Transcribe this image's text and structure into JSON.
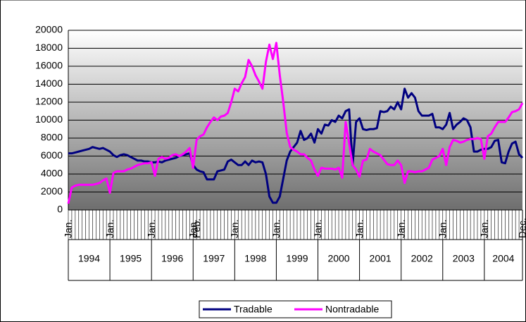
{
  "chart_data": {
    "type": "line",
    "categories": [
      "Jan.",
      null,
      null,
      null,
      null,
      null,
      null,
      null,
      null,
      null,
      null,
      null,
      "Jan.",
      null,
      null,
      null,
      null,
      null,
      null,
      null,
      null,
      null,
      null,
      null,
      "Jan.",
      null,
      null,
      null,
      null,
      null,
      null,
      null,
      null,
      null,
      null,
      null,
      "Jan.",
      "Feb.",
      null,
      null,
      null,
      null,
      null,
      null,
      null,
      null,
      null,
      null,
      "Jan.",
      null,
      null,
      null,
      null,
      null,
      null,
      null,
      null,
      null,
      null,
      null,
      "Jan.",
      null,
      null,
      null,
      null,
      null,
      null,
      null,
      null,
      null,
      null,
      null,
      "Jan.",
      null,
      null,
      null,
      null,
      null,
      null,
      null,
      null,
      null,
      null,
      null,
      "Jan.",
      null,
      null,
      null,
      null,
      null,
      null,
      null,
      null,
      null,
      null,
      null,
      "Jan.",
      null,
      null,
      null,
      null,
      null,
      null,
      null,
      null,
      null,
      null,
      null,
      "Jan.",
      null,
      null,
      null,
      null,
      null,
      null,
      null,
      null,
      null,
      null,
      null,
      "Jan.",
      null,
      null,
      null,
      null,
      null,
      null,
      null,
      null,
      null,
      null,
      "Dec."
    ],
    "years": [
      "1994",
      "1995",
      "1996",
      "1997",
      "1998",
      "1999",
      "2000",
      "2001",
      "2002",
      "2003",
      "2004"
    ],
    "series": [
      {
        "name": "Tradable",
        "color": "#000080",
        "values": [
          6300,
          6300,
          6400,
          6500,
          6600,
          6700,
          6800,
          7000,
          6900,
          6800,
          6900,
          6700,
          6500,
          6100,
          5900,
          6100,
          6200,
          6100,
          5900,
          5700,
          5500,
          5500,
          5400,
          5400,
          5300,
          5300,
          5400,
          5300,
          5500,
          5600,
          5700,
          5800,
          6000,
          6100,
          6200,
          6300,
          5000,
          4500,
          4300,
          4200,
          3400,
          3400,
          3400,
          4300,
          4400,
          4500,
          5400,
          5600,
          5300,
          5000,
          5000,
          5400,
          5000,
          5500,
          5300,
          5400,
          5300,
          4000,
          1500,
          800,
          800,
          1500,
          3500,
          5500,
          6500,
          7000,
          7500,
          8800,
          7800,
          8000,
          8500,
          7500,
          9000,
          8500,
          9500,
          9400,
          10000,
          9800,
          10500,
          10200,
          11000,
          11200,
          5000,
          9800,
          10200,
          9000,
          8900,
          9000,
          9000,
          9100,
          11000,
          10900,
          11000,
          11500,
          11200,
          12000,
          11200,
          13500,
          12500,
          13000,
          12500,
          11000,
          10500,
          10500,
          10500,
          10700,
          9200,
          9200,
          9000,
          9500,
          10800,
          9000,
          9500,
          9800,
          10200,
          10000,
          9200,
          6500,
          6500,
          6700,
          6800,
          6800,
          7000,
          7700,
          7800,
          5300,
          5200,
          6500,
          7400,
          7600,
          6200,
          5800
        ]
      },
      {
        "name": "Nontradable",
        "color": "#ff00ff",
        "values": [
          700,
          2500,
          2700,
          2800,
          2800,
          2800,
          2800,
          2800,
          2900,
          3000,
          3300,
          3500,
          1900,
          4100,
          4300,
          4300,
          4300,
          4500,
          4600,
          4800,
          5000,
          5100,
          5200,
          5200,
          5300,
          3800,
          5700,
          5900,
          5700,
          5800,
          6100,
          6200,
          6000,
          6200,
          6500,
          6900,
          4700,
          7800,
          8200,
          8400,
          9200,
          9800,
          10300,
          10000,
          10400,
          10500,
          10800,
          12000,
          13500,
          13200,
          14100,
          14800,
          16700,
          16000,
          15000,
          14300,
          13500,
          16500,
          18400,
          16800,
          18600,
          15000,
          12000,
          8600,
          7000,
          6700,
          6500,
          6200,
          6200,
          5800,
          5500,
          4500,
          3800,
          4700,
          4600,
          4600,
          4600,
          4500,
          4700,
          3600,
          9800,
          7400,
          5000,
          4500,
          3700,
          5500,
          5600,
          6800,
          6500,
          6300,
          6100,
          5600,
          5100,
          5000,
          5000,
          5500,
          5000,
          3000,
          4300,
          4300,
          4200,
          4300,
          4300,
          4500,
          4700,
          5600,
          5800,
          6000,
          6800,
          5000,
          7000,
          7800,
          7700,
          7500,
          7600,
          7800,
          7900,
          7900,
          8000,
          7900,
          5700,
          8200,
          8500,
          9200,
          9800,
          9800,
          9800,
          10300,
          10900,
          11000,
          11200,
          11900
        ]
      }
    ],
    "ylim": [
      0,
      20000
    ],
    "yticks": [
      0,
      2000,
      4000,
      6000,
      8000,
      10000,
      12000,
      14000,
      16000,
      18000,
      20000
    ],
    "grid": true,
    "legend": "bottom"
  }
}
